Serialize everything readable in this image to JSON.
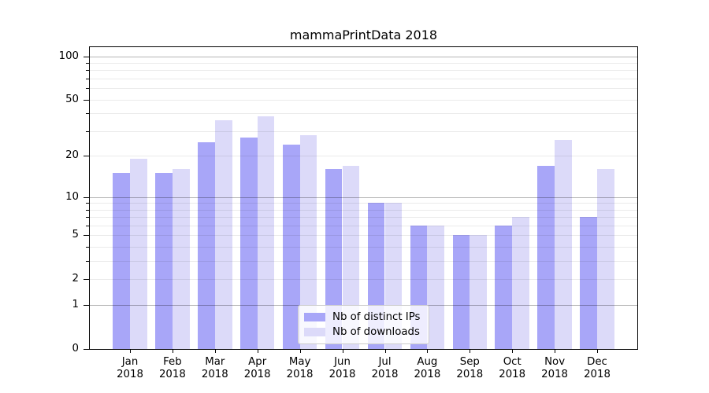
{
  "figure": {
    "title": "mammaPrintData 2018"
  },
  "chart_data": {
    "type": "bar",
    "title": "mammaPrintData 2018",
    "categories": [
      "Jan",
      "Feb",
      "Mar",
      "Apr",
      "May",
      "Jun",
      "Jul",
      "Aug",
      "Sep",
      "Oct",
      "Nov",
      "Dec"
    ],
    "category_year": "2018",
    "series": [
      {
        "name": "Nb of distinct IPs",
        "color": "#a8a6f8",
        "values": [
          15,
          15,
          25,
          27,
          24,
          16,
          9,
          6,
          5,
          6,
          17,
          7
        ]
      },
      {
        "name": "Nb of downloads",
        "color": "#dcdaf9",
        "values": [
          19,
          16,
          36,
          38,
          28,
          17,
          9,
          6,
          5,
          7,
          26,
          16
        ]
      }
    ],
    "xlabel": "",
    "ylabel": "",
    "yscale": "log1p",
    "ylim": [
      0,
      115.6
    ],
    "y_ticks": [
      0,
      1,
      2,
      5,
      10,
      20,
      50,
      100
    ],
    "y_major_gridlines": [
      1,
      10,
      100
    ],
    "y_minor_gridlines": [
      2,
      3,
      4,
      5,
      6,
      7,
      8,
      9,
      20,
      30,
      40,
      50,
      60,
      70,
      80,
      90
    ],
    "grid": "on",
    "legend_position": "lower center",
    "colors": {
      "major_grid": "rgba(0,0,0,0.29)",
      "minor_grid": "rgba(0,0,0,0.082)",
      "axis": "#000000",
      "background": "#ffffff"
    }
  }
}
